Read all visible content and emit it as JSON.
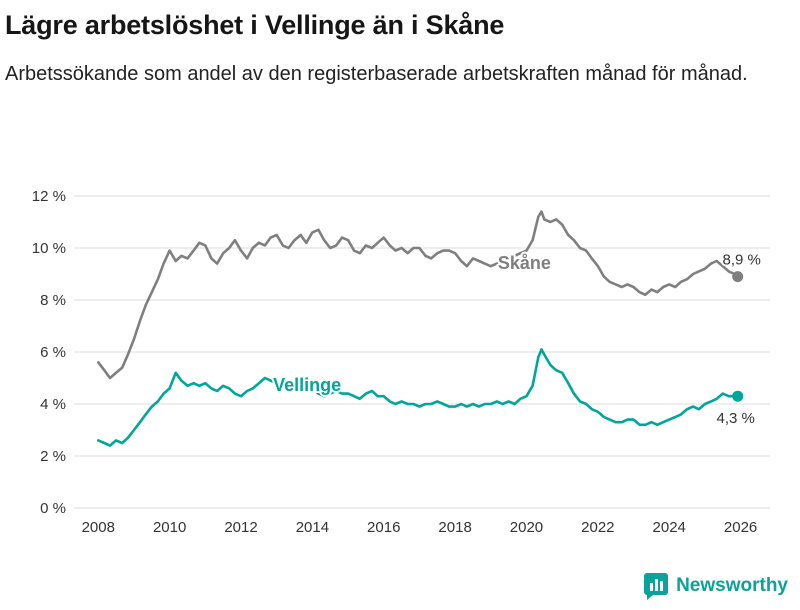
{
  "header": {
    "title": "Lägre arbetslöshet i Vellinge än i Skåne",
    "subtitle": "Arbetssökande som andel av den registerbaserade arbetskraften månad för månad."
  },
  "footer": {
    "brand": "Newsworthy",
    "brand_color": "#0aa29a"
  },
  "chart_data": {
    "type": "line",
    "title": "Lägre arbetslöshet i Vellinge än i Skåne",
    "xlabel": "",
    "ylabel": "",
    "unit": "%",
    "grid": true,
    "legend_position": "inline-labels",
    "xlim": [
      2007.6,
      2026.6
    ],
    "ylim": [
      0,
      12
    ],
    "yticks": [
      {
        "v": 0,
        "label": "0 %"
      },
      {
        "v": 2,
        "label": "2 %"
      },
      {
        "v": 4,
        "label": "4 %"
      },
      {
        "v": 6,
        "label": "6 %"
      },
      {
        "v": 8,
        "label": "8 %"
      },
      {
        "v": 10,
        "label": "10 %"
      },
      {
        "v": 12,
        "label": "12 %"
      }
    ],
    "xticks": [
      {
        "v": 2008,
        "label": "2008"
      },
      {
        "v": 2010,
        "label": "2010"
      },
      {
        "v": 2012,
        "label": "2012"
      },
      {
        "v": 2014,
        "label": "2014"
      },
      {
        "v": 2016,
        "label": "2016"
      },
      {
        "v": 2018,
        "label": "2018"
      },
      {
        "v": 2020,
        "label": "2020"
      },
      {
        "v": 2022,
        "label": "2022"
      },
      {
        "v": 2024,
        "label": "2024"
      },
      {
        "v": 2026,
        "label": "2026"
      }
    ],
    "series": [
      {
        "name": "Skåne",
        "color": "#7f7f7f",
        "label_x": 2019.2,
        "label_y": 9.2,
        "end_label": "8,9 %",
        "end_dx": 4,
        "end_dy": -12,
        "points": [
          [
            2008.0,
            5.6
          ],
          [
            2008.17,
            5.3
          ],
          [
            2008.33,
            5.0
          ],
          [
            2008.5,
            5.2
          ],
          [
            2008.67,
            5.4
          ],
          [
            2008.83,
            5.9
          ],
          [
            2009.0,
            6.5
          ],
          [
            2009.17,
            7.2
          ],
          [
            2009.33,
            7.8
          ],
          [
            2009.5,
            8.3
          ],
          [
            2009.67,
            8.8
          ],
          [
            2009.83,
            9.4
          ],
          [
            2010.0,
            9.9
          ],
          [
            2010.17,
            9.5
          ],
          [
            2010.33,
            9.7
          ],
          [
            2010.5,
            9.6
          ],
          [
            2010.67,
            9.9
          ],
          [
            2010.83,
            10.2
          ],
          [
            2011.0,
            10.1
          ],
          [
            2011.17,
            9.6
          ],
          [
            2011.33,
            9.4
          ],
          [
            2011.5,
            9.8
          ],
          [
            2011.67,
            10.0
          ],
          [
            2011.83,
            10.3
          ],
          [
            2012.0,
            9.9
          ],
          [
            2012.17,
            9.6
          ],
          [
            2012.33,
            10.0
          ],
          [
            2012.5,
            10.2
          ],
          [
            2012.67,
            10.1
          ],
          [
            2012.83,
            10.4
          ],
          [
            2013.0,
            10.5
          ],
          [
            2013.17,
            10.1
          ],
          [
            2013.33,
            10.0
          ],
          [
            2013.5,
            10.3
          ],
          [
            2013.67,
            10.5
          ],
          [
            2013.83,
            10.2
          ],
          [
            2014.0,
            10.6
          ],
          [
            2014.17,
            10.7
          ],
          [
            2014.33,
            10.3
          ],
          [
            2014.5,
            10.0
          ],
          [
            2014.67,
            10.1
          ],
          [
            2014.83,
            10.4
          ],
          [
            2015.0,
            10.3
          ],
          [
            2015.17,
            9.9
          ],
          [
            2015.33,
            9.8
          ],
          [
            2015.5,
            10.1
          ],
          [
            2015.67,
            10.0
          ],
          [
            2015.83,
            10.2
          ],
          [
            2016.0,
            10.4
          ],
          [
            2016.17,
            10.1
          ],
          [
            2016.33,
            9.9
          ],
          [
            2016.5,
            10.0
          ],
          [
            2016.67,
            9.8
          ],
          [
            2016.83,
            10.0
          ],
          [
            2017.0,
            10.0
          ],
          [
            2017.17,
            9.7
          ],
          [
            2017.33,
            9.6
          ],
          [
            2017.5,
            9.8
          ],
          [
            2017.67,
            9.9
          ],
          [
            2017.83,
            9.9
          ],
          [
            2018.0,
            9.8
          ],
          [
            2018.17,
            9.5
          ],
          [
            2018.33,
            9.3
          ],
          [
            2018.5,
            9.6
          ],
          [
            2018.67,
            9.5
          ],
          [
            2018.83,
            9.4
          ],
          [
            2019.0,
            9.3
          ],
          [
            2019.17,
            9.4
          ],
          [
            2019.33,
            9.5
          ],
          [
            2019.5,
            9.6
          ],
          [
            2019.67,
            9.7
          ],
          [
            2019.83,
            9.8
          ],
          [
            2020.0,
            9.9
          ],
          [
            2020.17,
            10.3
          ],
          [
            2020.33,
            11.2
          ],
          [
            2020.42,
            11.4
          ],
          [
            2020.5,
            11.1
          ],
          [
            2020.67,
            11.0
          ],
          [
            2020.83,
            11.1
          ],
          [
            2021.0,
            10.9
          ],
          [
            2021.17,
            10.5
          ],
          [
            2021.33,
            10.3
          ],
          [
            2021.5,
            10.0
          ],
          [
            2021.67,
            9.9
          ],
          [
            2021.83,
            9.6
          ],
          [
            2022.0,
            9.3
          ],
          [
            2022.17,
            8.9
          ],
          [
            2022.33,
            8.7
          ],
          [
            2022.5,
            8.6
          ],
          [
            2022.67,
            8.5
          ],
          [
            2022.83,
            8.6
          ],
          [
            2023.0,
            8.5
          ],
          [
            2023.17,
            8.3
          ],
          [
            2023.33,
            8.2
          ],
          [
            2023.5,
            8.4
          ],
          [
            2023.67,
            8.3
          ],
          [
            2023.83,
            8.5
          ],
          [
            2024.0,
            8.6
          ],
          [
            2024.17,
            8.5
          ],
          [
            2024.33,
            8.7
          ],
          [
            2024.5,
            8.8
          ],
          [
            2024.67,
            9.0
          ],
          [
            2024.83,
            9.1
          ],
          [
            2025.0,
            9.2
          ],
          [
            2025.17,
            9.4
          ],
          [
            2025.33,
            9.5
          ],
          [
            2025.5,
            9.3
          ],
          [
            2025.67,
            9.1
          ],
          [
            2025.83,
            9.0
          ],
          [
            2025.92,
            8.9
          ]
        ]
      },
      {
        "name": "Vellinge",
        "color": "#00a69a",
        "label_x": 2012.9,
        "label_y": 4.5,
        "end_label": "4,3 %",
        "end_dx": -2,
        "end_dy": 27,
        "points": [
          [
            2008.0,
            2.6
          ],
          [
            2008.17,
            2.5
          ],
          [
            2008.33,
            2.4
          ],
          [
            2008.5,
            2.6
          ],
          [
            2008.67,
            2.5
          ],
          [
            2008.83,
            2.7
          ],
          [
            2009.0,
            3.0
          ],
          [
            2009.17,
            3.3
          ],
          [
            2009.33,
            3.6
          ],
          [
            2009.5,
            3.9
          ],
          [
            2009.67,
            4.1
          ],
          [
            2009.83,
            4.4
          ],
          [
            2010.0,
            4.6
          ],
          [
            2010.17,
            5.2
          ],
          [
            2010.33,
            4.9
          ],
          [
            2010.5,
            4.7
          ],
          [
            2010.67,
            4.8
          ],
          [
            2010.83,
            4.7
          ],
          [
            2011.0,
            4.8
          ],
          [
            2011.17,
            4.6
          ],
          [
            2011.33,
            4.5
          ],
          [
            2011.5,
            4.7
          ],
          [
            2011.67,
            4.6
          ],
          [
            2011.83,
            4.4
          ],
          [
            2012.0,
            4.3
          ],
          [
            2012.17,
            4.5
          ],
          [
            2012.33,
            4.6
          ],
          [
            2012.5,
            4.8
          ],
          [
            2012.67,
            5.0
          ],
          [
            2012.83,
            4.9
          ],
          [
            2013.0,
            4.8
          ],
          [
            2013.17,
            4.7
          ],
          [
            2013.33,
            4.6
          ],
          [
            2013.5,
            4.8
          ],
          [
            2013.67,
            4.9
          ],
          [
            2013.83,
            4.7
          ],
          [
            2014.0,
            4.6
          ],
          [
            2014.17,
            4.4
          ],
          [
            2014.33,
            4.3
          ],
          [
            2014.5,
            4.4
          ],
          [
            2014.67,
            4.5
          ],
          [
            2014.83,
            4.4
          ],
          [
            2015.0,
            4.4
          ],
          [
            2015.17,
            4.3
          ],
          [
            2015.33,
            4.2
          ],
          [
            2015.5,
            4.4
          ],
          [
            2015.67,
            4.5
          ],
          [
            2015.83,
            4.3
          ],
          [
            2016.0,
            4.3
          ],
          [
            2016.17,
            4.1
          ],
          [
            2016.33,
            4.0
          ],
          [
            2016.5,
            4.1
          ],
          [
            2016.67,
            4.0
          ],
          [
            2016.83,
            4.0
          ],
          [
            2017.0,
            3.9
          ],
          [
            2017.17,
            4.0
          ],
          [
            2017.33,
            4.0
          ],
          [
            2017.5,
            4.1
          ],
          [
            2017.67,
            4.0
          ],
          [
            2017.83,
            3.9
          ],
          [
            2018.0,
            3.9
          ],
          [
            2018.17,
            4.0
          ],
          [
            2018.33,
            3.9
          ],
          [
            2018.5,
            4.0
          ],
          [
            2018.67,
            3.9
          ],
          [
            2018.83,
            4.0
          ],
          [
            2019.0,
            4.0
          ],
          [
            2019.17,
            4.1
          ],
          [
            2019.33,
            4.0
          ],
          [
            2019.5,
            4.1
          ],
          [
            2019.67,
            4.0
          ],
          [
            2019.83,
            4.2
          ],
          [
            2020.0,
            4.3
          ],
          [
            2020.17,
            4.7
          ],
          [
            2020.33,
            5.8
          ],
          [
            2020.42,
            6.1
          ],
          [
            2020.5,
            5.9
          ],
          [
            2020.67,
            5.5
          ],
          [
            2020.83,
            5.3
          ],
          [
            2021.0,
            5.2
          ],
          [
            2021.17,
            4.8
          ],
          [
            2021.33,
            4.4
          ],
          [
            2021.5,
            4.1
          ],
          [
            2021.67,
            4.0
          ],
          [
            2021.83,
            3.8
          ],
          [
            2022.0,
            3.7
          ],
          [
            2022.17,
            3.5
          ],
          [
            2022.33,
            3.4
          ],
          [
            2022.5,
            3.3
          ],
          [
            2022.67,
            3.3
          ],
          [
            2022.83,
            3.4
          ],
          [
            2023.0,
            3.4
          ],
          [
            2023.17,
            3.2
          ],
          [
            2023.33,
            3.2
          ],
          [
            2023.5,
            3.3
          ],
          [
            2023.67,
            3.2
          ],
          [
            2023.83,
            3.3
          ],
          [
            2024.0,
            3.4
          ],
          [
            2024.17,
            3.5
          ],
          [
            2024.33,
            3.6
          ],
          [
            2024.5,
            3.8
          ],
          [
            2024.67,
            3.9
          ],
          [
            2024.83,
            3.8
          ],
          [
            2025.0,
            4.0
          ],
          [
            2025.17,
            4.1
          ],
          [
            2025.33,
            4.2
          ],
          [
            2025.5,
            4.4
          ],
          [
            2025.67,
            4.3
          ],
          [
            2025.83,
            4.3
          ],
          [
            2025.92,
            4.3
          ]
        ]
      }
    ]
  }
}
